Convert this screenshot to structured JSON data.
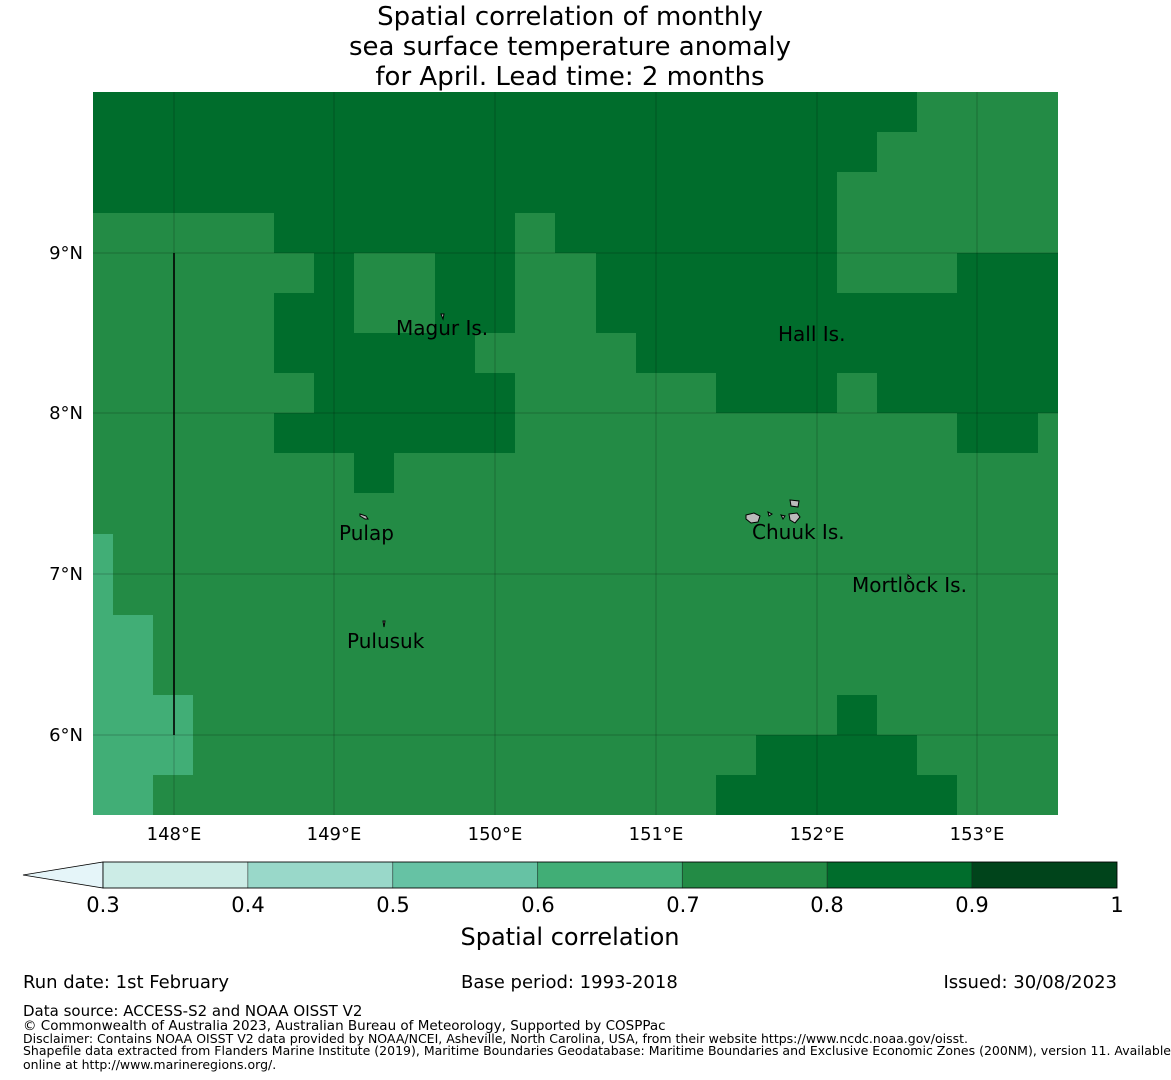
{
  "title": {
    "line1": "Spatial correlation of monthly",
    "line2": "sea surface temperature anomaly",
    "line3": "for April. Lead time: 2 months"
  },
  "map": {
    "x_ticks": [
      "148°E",
      "149°E",
      "150°E",
      "151°E",
      "152°E",
      "153°E"
    ],
    "y_ticks": [
      "9°N",
      "8°N",
      "7°N",
      "6°N"
    ],
    "places": [
      "Magur Is.",
      "Hall Is.",
      "Pulap",
      "Chuuk Is.",
      "Mortlock Is.",
      "Pulusuk"
    ]
  },
  "colorbar": {
    "label": "Spatial correlation",
    "ticks": [
      "0.3",
      "0.4",
      "0.5",
      "0.6",
      "0.7",
      "0.8",
      "0.9",
      "1"
    ],
    "colors": [
      "#ccece6",
      "#99d8c9",
      "#66c2a4",
      "#41ae76",
      "#238b45",
      "#006d2c",
      "#00441b"
    ],
    "under_color": "#e5f5f9"
  },
  "footer": {
    "run_date": "Run date: 1st February",
    "base_period": "Base period: 1993-2018",
    "issued": "Issued: 30/08/2023",
    "data_source": "Data source: ACCESS-S2 and NOAA OISST V2",
    "copyright": "© Commonwealth of Australia 2023, Australian Bureau of Meteorology, Supported by COSPPac",
    "disclaimer": "Disclaimer: Contains NOAA OISST V2 data provided by NOAA/NCEI, Asheville, North Carolina, USA, from their website https://www.ncdc.noaa.gov/oisst.",
    "shapefile_1": "Shapefile data extracted from Flanders Marine Institute (2019), Maritime Boundaries Geodatabase: Maritime Boundaries and Exclusive Economic Zones (200NM), version 11. Available",
    "shapefile_2": "online at http://www.marineregions.org/."
  }
}
